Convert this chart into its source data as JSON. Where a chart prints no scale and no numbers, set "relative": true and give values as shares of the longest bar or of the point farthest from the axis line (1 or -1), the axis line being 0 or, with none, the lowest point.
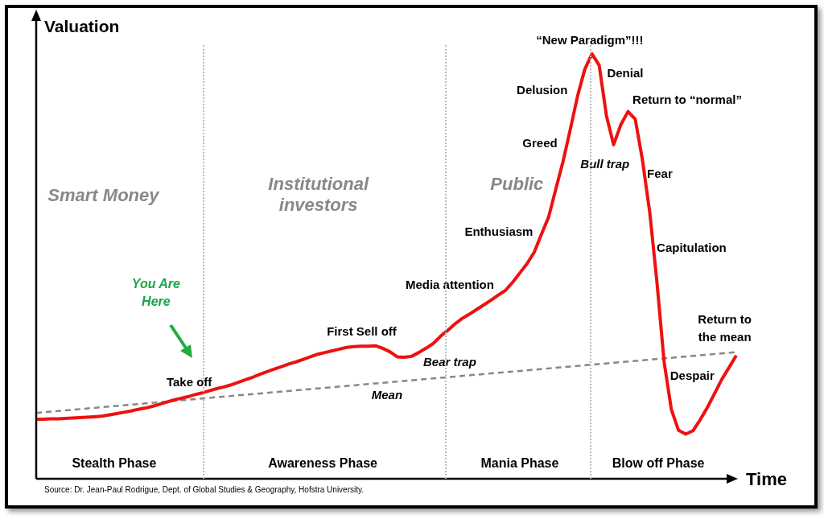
{
  "chart_data": {
    "type": "line",
    "relative": true,
    "xlabel": "Time",
    "ylabel": "Valuation",
    "tick_labels": false,
    "legend": false,
    "marker": "none",
    "categories": [
      null,
      null,
      null,
      null,
      null,
      null,
      null,
      null,
      null,
      null,
      null,
      null,
      null,
      null,
      null,
      null,
      null,
      null,
      null,
      null,
      null,
      null,
      null,
      null,
      null,
      null,
      null,
      null,
      null,
      null,
      null,
      null,
      null,
      null,
      null,
      null,
      null,
      null,
      null,
      null,
      null,
      null,
      null,
      null,
      null,
      null,
      null,
      null,
      null,
      null,
      null,
      null,
      null,
      null,
      null,
      null,
      null,
      null,
      null,
      null,
      null,
      null,
      null,
      null,
      null,
      null,
      null,
      null,
      null,
      null,
      null,
      null,
      null,
      null,
      null,
      null,
      null,
      null,
      null,
      null,
      null,
      null,
      null,
      null,
      null,
      null,
      null,
      null,
      null,
      null,
      null,
      null,
      null,
      null,
      null,
      null,
      null,
      null
    ],
    "series": [
      {
        "color": "#ee1111",
        "line_style": "solid",
        "values": [
          0.14,
          0.14,
          0.141,
          0.141,
          0.142,
          0.143,
          0.144,
          0.145,
          0.146,
          0.147,
          0.15,
          0.153,
          0.156,
          0.159,
          0.163,
          0.166,
          0.17,
          0.175,
          0.18,
          0.185,
          0.189,
          0.193,
          0.198,
          0.202,
          0.207,
          0.212,
          0.216,
          0.221,
          0.227,
          0.233,
          0.239,
          0.246,
          0.252,
          0.258,
          0.264,
          0.27,
          0.275,
          0.281,
          0.287,
          0.293,
          0.297,
          0.301,
          0.305,
          0.309,
          0.311,
          0.312,
          0.312,
          0.313,
          0.307,
          0.299,
          0.287,
          0.286,
          0.288,
          0.297,
          0.307,
          0.318,
          0.335,
          0.349,
          0.364,
          0.377,
          0.387,
          0.398,
          0.409,
          0.42,
          0.432,
          0.443,
          0.462,
          0.484,
          0.506,
          0.533,
          0.575,
          0.616,
          0.682,
          0.747,
          0.822,
          0.9,
          0.963,
          1,
          0.973,
          0.855,
          0.786,
          0.833,
          0.864,
          0.846,
          0.75,
          0.628,
          0.464,
          0.275,
          0.163,
          0.114,
          0.105,
          0.113,
          0.139,
          0.168,
          0.201,
          0.234,
          0.262,
          0.29
        ]
      },
      {
        "type": "line",
        "color": "#888888",
        "line_style": "dashed",
        "values": [
          0.155,
          null,
          null,
          null,
          null,
          null,
          null,
          null,
          null,
          null,
          null,
          null,
          null,
          null,
          null,
          null,
          null,
          null,
          null,
          null,
          null,
          null,
          null,
          null,
          null,
          null,
          null,
          null,
          null,
          null,
          null,
          null,
          null,
          null,
          null,
          null,
          null,
          null,
          null,
          null,
          null,
          null,
          null,
          null,
          null,
          null,
          null,
          null,
          null,
          null,
          null,
          null,
          null,
          null,
          null,
          null,
          null,
          null,
          null,
          null,
          null,
          null,
          null,
          null,
          null,
          null,
          null,
          null,
          null,
          null,
          null,
          null,
          null,
          null,
          null,
          null,
          null,
          null,
          null,
          null,
          null,
          null,
          null,
          null,
          null,
          null,
          null,
          null,
          null,
          null,
          null,
          null,
          null,
          null,
          null,
          null,
          null,
          0.298
        ]
      }
    ],
    "annotations": [
      "Smart Money",
      "Institutional investors",
      "Public",
      "Stealth Phase",
      "Awareness Phase",
      "Mania Phase",
      "Blow off Phase",
      "You Are Here",
      "Take off",
      "First Sell off",
      "Bear trap",
      "Mean",
      "Media attention",
      "Enthusiasm",
      "Greed",
      "Delusion",
      "“New Paradigm”!!!",
      "Denial",
      "Bull trap",
      "Return to “normal”",
      "Fear",
      "Capitulation",
      "Return to the mean",
      "Despair",
      "Source: Dr. Jean-Paul Rodrigue, Dept. of Global Studies & Geography, Hofstra University."
    ]
  }
}
